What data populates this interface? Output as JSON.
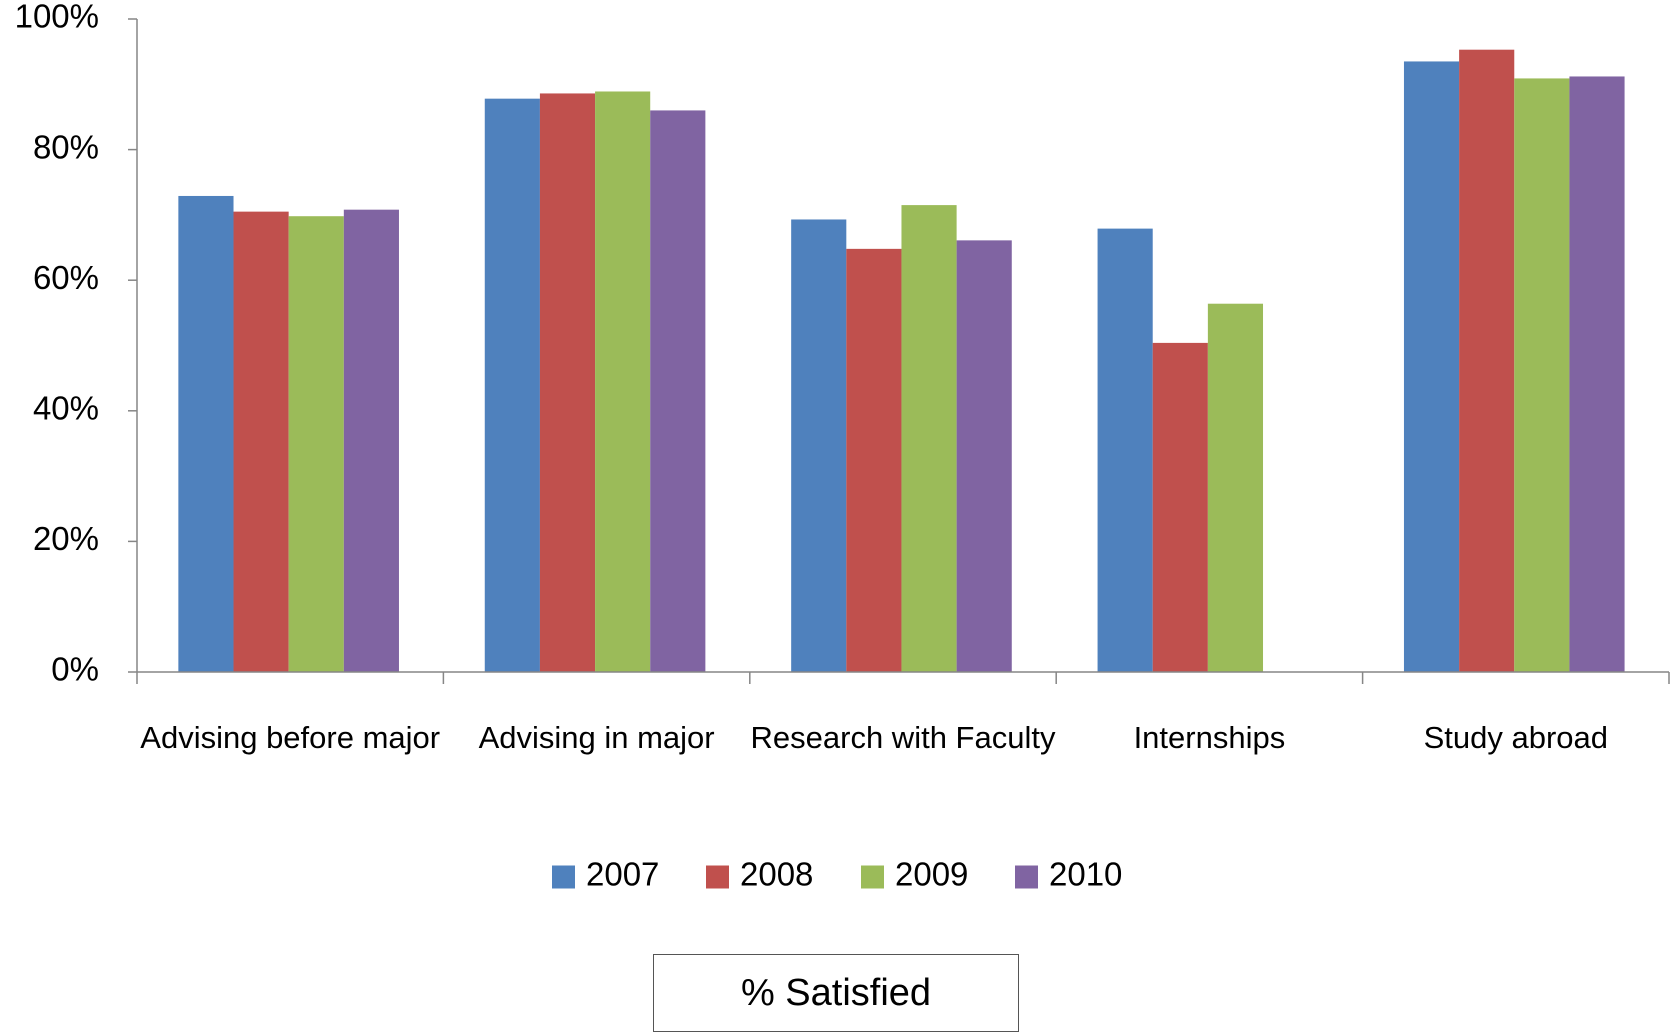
{
  "chart_data": {
    "type": "bar",
    "title": "% Satisfied",
    "categories": [
      "Advising before major",
      "Advising in major",
      "Research with Faculty",
      "Internships",
      "Study abroad"
    ],
    "series": [
      {
        "name": "2007",
        "color": "#4f81bd",
        "values": [
          72.9,
          87.8,
          69.3,
          67.9,
          93.5
        ]
      },
      {
        "name": "2008",
        "color": "#c0504d",
        "values": [
          70.5,
          88.6,
          64.8,
          50.4,
          95.3
        ]
      },
      {
        "name": "2009",
        "color": "#9bbb59",
        "values": [
          69.8,
          88.9,
          71.5,
          56.4,
          90.9
        ]
      },
      {
        "name": "2010",
        "color": "#8064a2",
        "values": [
          70.8,
          86.0,
          66.1,
          null,
          91.2
        ]
      }
    ],
    "ylim": [
      0,
      100
    ],
    "yticks": [
      {
        "value": 0,
        "label": "0%"
      },
      {
        "value": 20,
        "label": "20%"
      },
      {
        "value": 40,
        "label": "40%"
      },
      {
        "value": 60,
        "label": "60%"
      },
      {
        "value": 80,
        "label": "80%"
      },
      {
        "value": 100,
        "label": "100%"
      }
    ],
    "grid": false,
    "legend": "bottom"
  }
}
